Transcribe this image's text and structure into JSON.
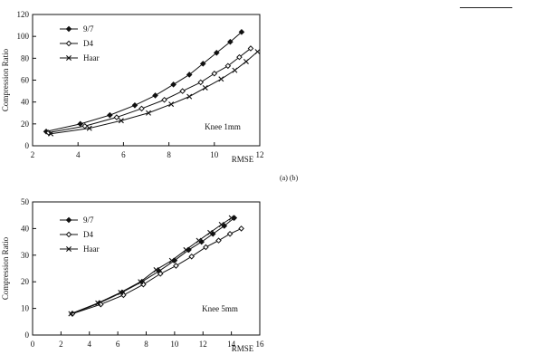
{
  "caption": "(a) (b)",
  "chart_data": [
    {
      "type": "line",
      "xlabel": "RMSE",
      "ylabel": "Compression Ratio",
      "annotation": "Knee 1mm",
      "xlim": [
        2,
        12
      ],
      "ylim": [
        0,
        120
      ],
      "xticks": [
        2,
        4,
        6,
        8,
        10,
        12
      ],
      "yticks": [
        0,
        20,
        40,
        60,
        80,
        100,
        120
      ],
      "legend_position": "top-left",
      "series": [
        {
          "name": "9/7",
          "marker": "diamond-filled",
          "points": [
            [
              2.6,
              13
            ],
            [
              4.1,
              20
            ],
            [
              5.4,
              28
            ],
            [
              6.5,
              37
            ],
            [
              7.4,
              46
            ],
            [
              8.2,
              56
            ],
            [
              8.9,
              65
            ],
            [
              9.5,
              75
            ],
            [
              10.1,
              85
            ],
            [
              10.7,
              95
            ],
            [
              11.2,
              104
            ]
          ]
        },
        {
          "name": "D4",
          "marker": "diamond-open",
          "points": [
            [
              2.7,
              12
            ],
            [
              4.3,
              18
            ],
            [
              5.7,
              26
            ],
            [
              6.8,
              34
            ],
            [
              7.8,
              42
            ],
            [
              8.6,
              50
            ],
            [
              9.4,
              58
            ],
            [
              10.0,
              66
            ],
            [
              10.6,
              73
            ],
            [
              11.1,
              81
            ],
            [
              11.6,
              89
            ]
          ]
        },
        {
          "name": "Haar",
          "marker": "x",
          "points": [
            [
              2.8,
              11
            ],
            [
              4.5,
              16
            ],
            [
              5.9,
              23
            ],
            [
              7.1,
              30
            ],
            [
              8.1,
              38
            ],
            [
              8.9,
              45
            ],
            [
              9.6,
              53
            ],
            [
              10.3,
              61
            ],
            [
              10.9,
              69
            ],
            [
              11.4,
              77
            ],
            [
              11.9,
              86
            ]
          ]
        }
      ]
    },
    {
      "type": "line",
      "xlabel": "RMSE",
      "ylabel": "Compression Ratio",
      "annotation": "Knee 5mm",
      "xlim": [
        0,
        16
      ],
      "ylim": [
        0,
        50
      ],
      "xticks": [
        0,
        2,
        4,
        6,
        8,
        10,
        12,
        14,
        16
      ],
      "yticks": [
        0,
        10,
        20,
        30,
        40,
        50
      ],
      "legend_position": "top-left",
      "series": [
        {
          "name": "9/7",
          "marker": "diamond-filled",
          "points": [
            [
              2.8,
              8
            ],
            [
              4.7,
              12
            ],
            [
              6.3,
              16
            ],
            [
              7.7,
              20
            ],
            [
              8.9,
              24
            ],
            [
              10.0,
              28
            ],
            [
              11.0,
              32
            ],
            [
              11.9,
              35
            ],
            [
              12.7,
              38
            ],
            [
              13.5,
              41
            ],
            [
              14.2,
              44
            ]
          ]
        },
        {
          "name": "D4",
          "marker": "diamond-open",
          "points": [
            [
              2.8,
              8
            ],
            [
              4.8,
              11.5
            ],
            [
              6.4,
              15
            ],
            [
              7.8,
              19
            ],
            [
              9.0,
              23
            ],
            [
              10.1,
              26
            ],
            [
              11.2,
              29.5
            ],
            [
              12.2,
              33
            ],
            [
              13.1,
              35.5
            ],
            [
              13.9,
              38
            ],
            [
              14.7,
              40
            ]
          ]
        },
        {
          "name": "Haar",
          "marker": "x",
          "points": [
            [
              2.7,
              8
            ],
            [
              4.6,
              12
            ],
            [
              6.2,
              16
            ],
            [
              7.6,
              20
            ],
            [
              8.7,
              24.5
            ],
            [
              9.8,
              28
            ],
            [
              10.8,
              32
            ],
            [
              11.7,
              35.5
            ],
            [
              12.5,
              38.5
            ],
            [
              13.3,
              41.5
            ],
            [
              14.0,
              44
            ]
          ]
        }
      ]
    }
  ]
}
